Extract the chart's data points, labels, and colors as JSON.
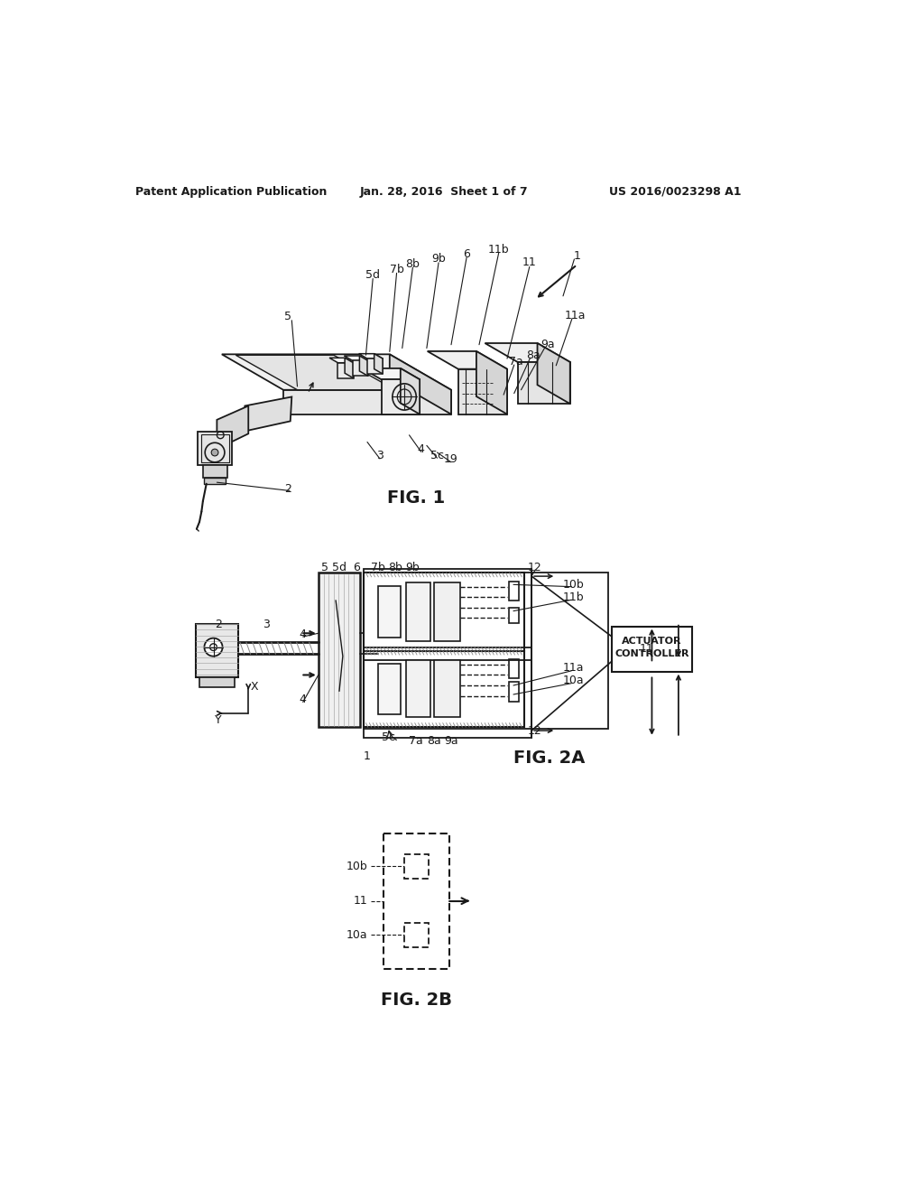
{
  "background_color": "#ffffff",
  "header_left": "Patent Application Publication",
  "header_center": "Jan. 28, 2016  Sheet 1 of 7",
  "header_right": "US 2016/0023298 A1",
  "fig1_caption": "FIG. 1",
  "fig2a_caption": "FIG. 2A",
  "fig2b_caption": "FIG. 2B",
  "lc": "#1a1a1a",
  "tc": "#1a1a1a",
  "hatch_color": "#555555"
}
